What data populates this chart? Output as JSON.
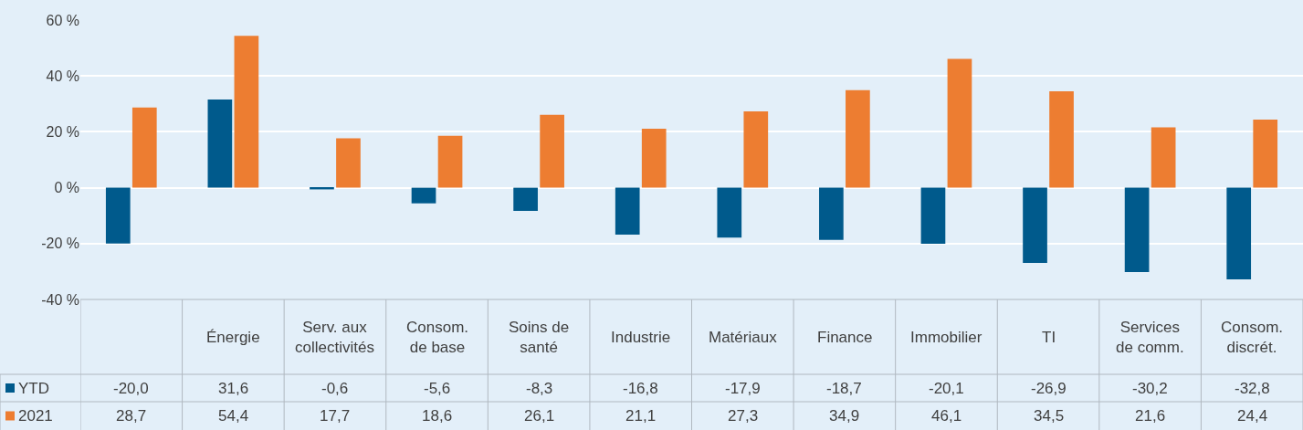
{
  "chart_data": {
    "type": "bar",
    "categories": [
      null,
      "Énergie",
      "Serv. aux collectivités",
      "Consom. de base",
      "Soins de santé",
      "Industrie",
      "Matériaux",
      "Finance",
      "Immobilier",
      "TI",
      "Services de comm.",
      "Consom. discrét."
    ],
    "series": [
      {
        "name": "YTD",
        "color": "#005a8c",
        "values": [
          -20.0,
          31.6,
          -0.6,
          -5.6,
          -8.3,
          -16.8,
          -17.9,
          -18.7,
          -20.1,
          -26.9,
          -30.2,
          -32.8
        ],
        "value_labels": [
          "-20,0",
          "31,6",
          "-0,6",
          "-5,6",
          "-8,3",
          "-16,8",
          "-17,9",
          "-18,7",
          "-20,1",
          "-26,9",
          "-30,2",
          "-32,8"
        ]
      },
      {
        "name": "2021",
        "color": "#ed7d31",
        "values": [
          28.7,
          54.4,
          17.7,
          18.6,
          26.1,
          21.1,
          27.3,
          34.9,
          46.1,
          34.5,
          21.6,
          24.4
        ],
        "value_labels": [
          "28,7",
          "54,4",
          "17,7",
          "18,6",
          "26,1",
          "21,1",
          "27,3",
          "34,9",
          "46,1",
          "34,5",
          "21,6",
          "24,4"
        ]
      }
    ],
    "ylim": [
      -40,
      60
    ],
    "yticks": [
      {
        "value": -40,
        "label": "-40 %"
      },
      {
        "value": -20,
        "label": "-20 %"
      },
      {
        "value": 0,
        "label": "0 %"
      },
      {
        "value": 20,
        "label": "20 %"
      },
      {
        "value": 40,
        "label": "40 %"
      },
      {
        "value": 60,
        "label": "60 %"
      }
    ],
    "grid": "y",
    "legend": "bottom left"
  }
}
